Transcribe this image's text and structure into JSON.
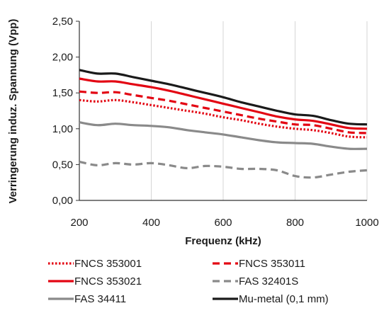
{
  "chart_data": {
    "type": "line",
    "xlabel": "Frequenz (kHz)",
    "ylabel": "Verringerung induz. Spannung (Vpp)",
    "xlim": [
      200,
      1000
    ],
    "ylim": [
      0,
      2.5
    ],
    "x_ticks": [
      200,
      400,
      600,
      800,
      1000
    ],
    "x_tick_labels": [
      "200",
      "400",
      "600",
      "800",
      "1000"
    ],
    "y_ticks": [
      0,
      0.5,
      1.0,
      1.5,
      2.0,
      2.5
    ],
    "y_tick_labels": [
      "0,00",
      "0,50",
      "1,00",
      "1,50",
      "2,00",
      "2,50"
    ],
    "grid": "vertical",
    "legend_position": "bottom",
    "series": [
      {
        "name": "FNCS 353001",
        "color": "#e30613",
        "style": "dotted",
        "x": [
          200,
          250,
          300,
          350,
          400,
          450,
          500,
          550,
          600,
          650,
          700,
          750,
          800,
          850,
          900,
          950,
          1000
        ],
        "y": [
          1.4,
          1.38,
          1.4,
          1.37,
          1.33,
          1.29,
          1.25,
          1.21,
          1.16,
          1.12,
          1.07,
          1.03,
          1.0,
          0.98,
          0.94,
          0.89,
          0.88
        ]
      },
      {
        "name": "FNCS 353011",
        "color": "#e30613",
        "style": "dashed",
        "x": [
          200,
          250,
          300,
          350,
          400,
          450,
          500,
          550,
          600,
          650,
          700,
          750,
          800,
          850,
          900,
          950,
          1000
        ],
        "y": [
          1.52,
          1.5,
          1.51,
          1.47,
          1.43,
          1.39,
          1.34,
          1.29,
          1.24,
          1.19,
          1.14,
          1.1,
          1.06,
          1.05,
          1.0,
          0.95,
          0.94
        ]
      },
      {
        "name": "FNCS 353021",
        "color": "#e30613",
        "style": "solid",
        "x": [
          200,
          250,
          300,
          350,
          400,
          450,
          500,
          550,
          600,
          650,
          700,
          750,
          800,
          850,
          900,
          950,
          1000
        ],
        "y": [
          1.7,
          1.66,
          1.66,
          1.62,
          1.58,
          1.53,
          1.47,
          1.41,
          1.35,
          1.29,
          1.23,
          1.17,
          1.13,
          1.11,
          1.06,
          1.01,
          1.0
        ]
      },
      {
        "name": "FAS 32401S",
        "color": "#8a8a8a",
        "style": "dashed",
        "x": [
          200,
          250,
          300,
          350,
          400,
          450,
          500,
          550,
          600,
          650,
          700,
          750,
          800,
          850,
          900,
          950,
          1000
        ],
        "y": [
          0.54,
          0.49,
          0.52,
          0.5,
          0.52,
          0.49,
          0.45,
          0.48,
          0.47,
          0.44,
          0.44,
          0.42,
          0.34,
          0.32,
          0.36,
          0.4,
          0.42
        ]
      },
      {
        "name": "FAS 34411",
        "color": "#8a8a8a",
        "style": "solid",
        "x": [
          200,
          250,
          300,
          350,
          400,
          450,
          500,
          550,
          600,
          650,
          700,
          750,
          800,
          850,
          900,
          950,
          1000
        ],
        "y": [
          1.09,
          1.05,
          1.07,
          1.05,
          1.04,
          1.02,
          0.98,
          0.95,
          0.92,
          0.88,
          0.84,
          0.81,
          0.8,
          0.79,
          0.75,
          0.72,
          0.72
        ]
      },
      {
        "name": "Mu-metal (0,1 mm)",
        "color": "#1a1a1a",
        "style": "solid",
        "x": [
          200,
          250,
          300,
          350,
          400,
          450,
          500,
          550,
          600,
          650,
          700,
          750,
          800,
          850,
          900,
          950,
          1000
        ],
        "y": [
          1.82,
          1.77,
          1.77,
          1.72,
          1.67,
          1.62,
          1.56,
          1.5,
          1.44,
          1.37,
          1.31,
          1.25,
          1.2,
          1.18,
          1.12,
          1.07,
          1.06
        ]
      }
    ]
  }
}
